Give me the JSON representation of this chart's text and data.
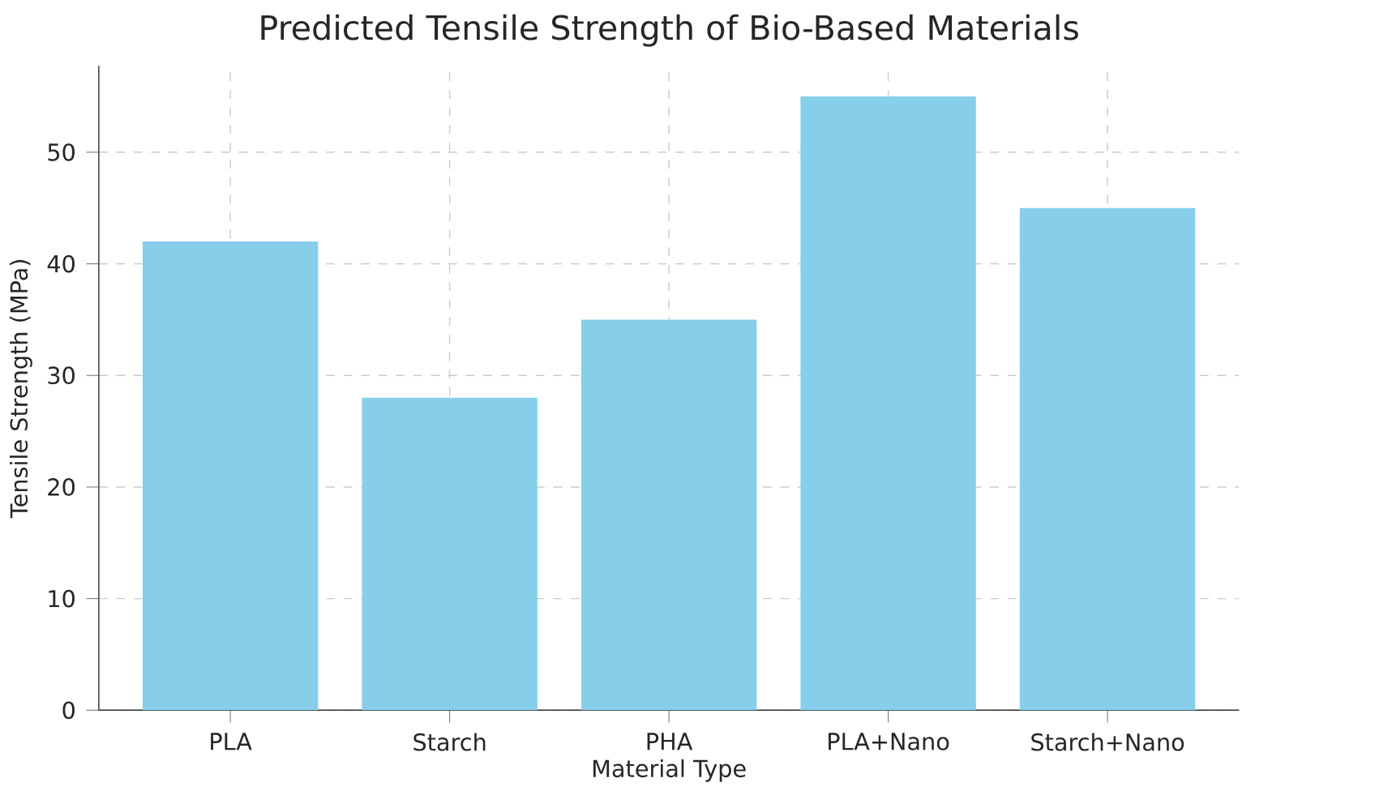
{
  "chart_data": {
    "type": "bar",
    "title": "Predicted Tensile Strength of Bio-Based Materials",
    "xlabel": "Material Type",
    "ylabel": "Tensile Strength (MPa)",
    "categories": [
      "PLA",
      "Starch",
      "PHA",
      "PLA+Nano",
      "Starch+Nano"
    ],
    "values": [
      42,
      28,
      35,
      55,
      45
    ],
    "color": "#87ceeb",
    "ylim": [
      0,
      57.75
    ],
    "yticks": [
      0,
      10,
      20,
      30,
      40,
      50
    ],
    "grid": true
  }
}
